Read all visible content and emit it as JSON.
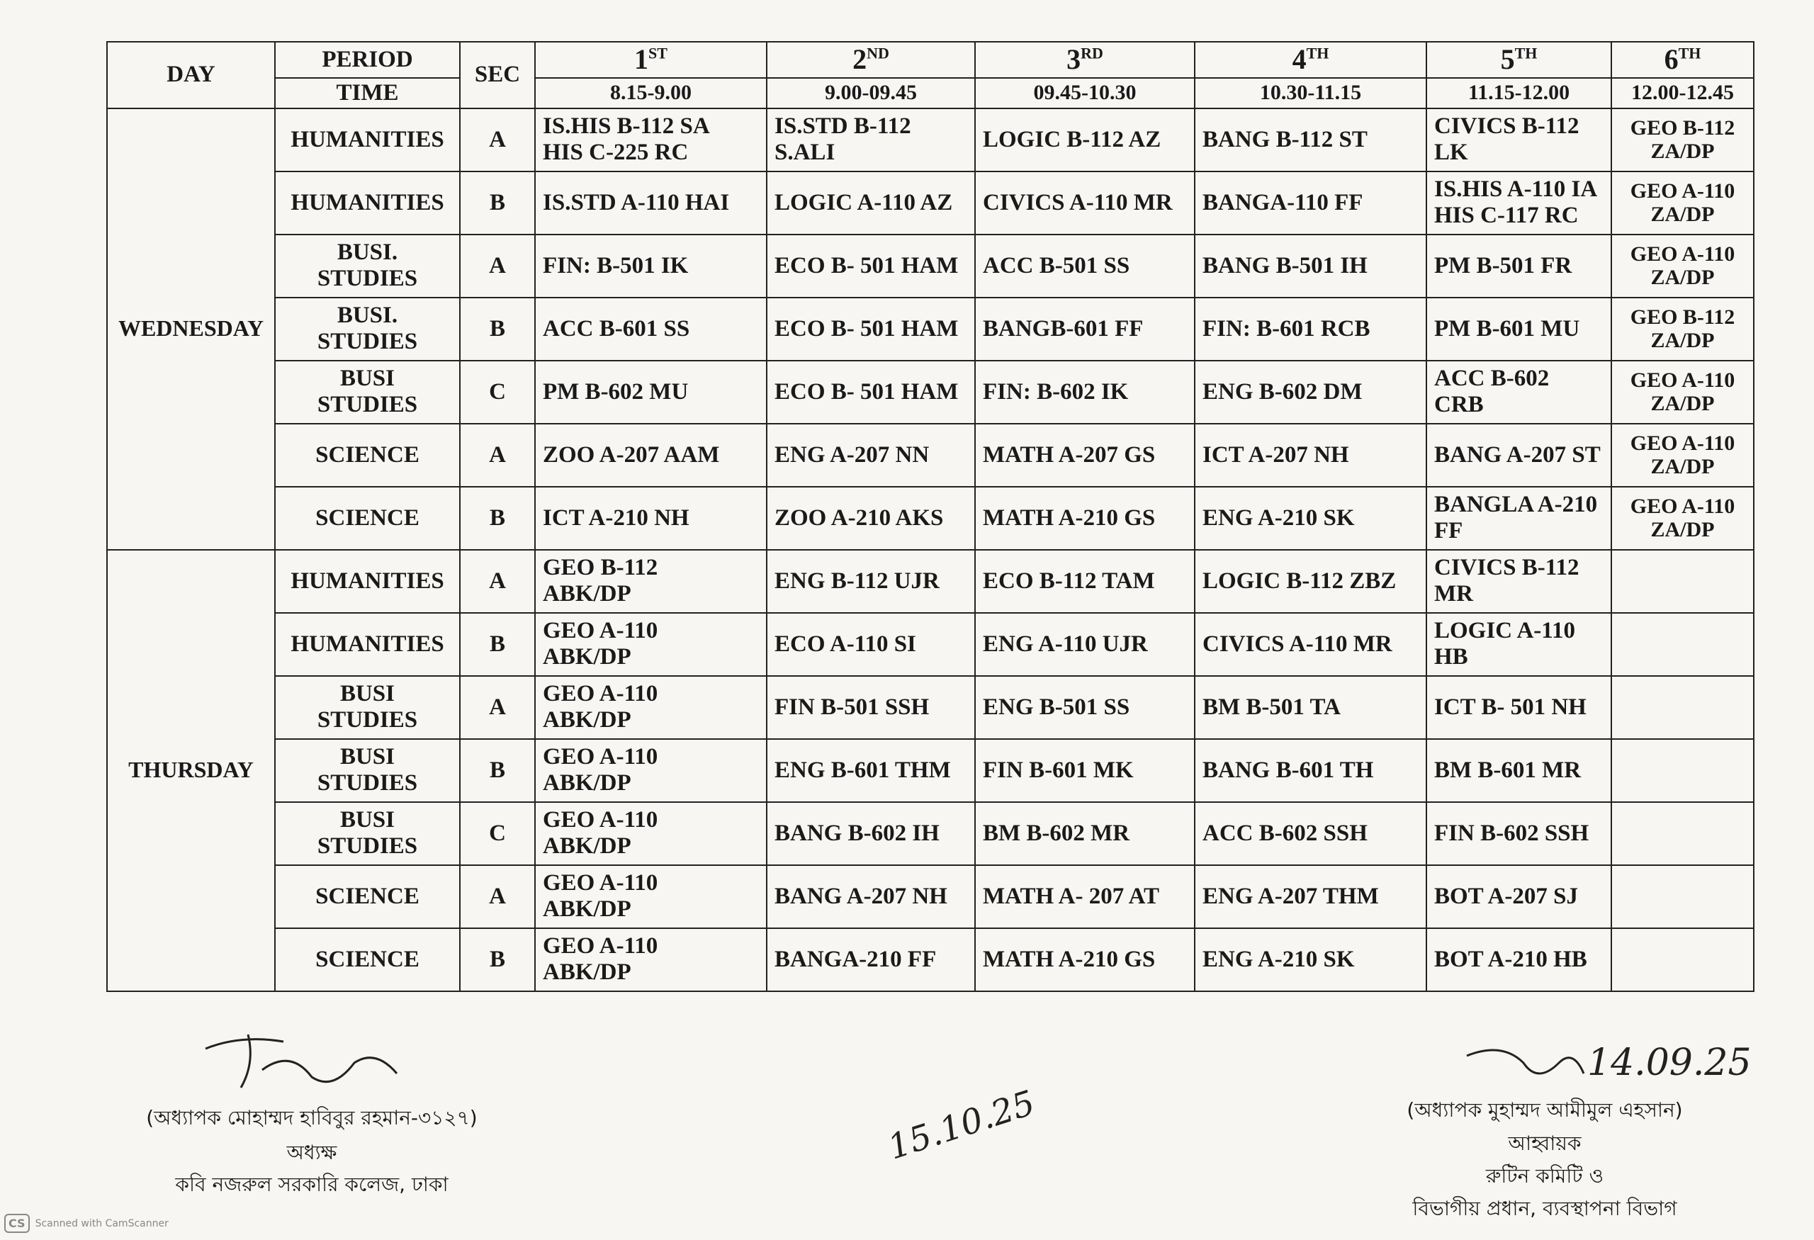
{
  "header": {
    "day": "DAY",
    "period": "PERIOD",
    "time": "TIME",
    "section": "SEC",
    "periods": [
      {
        "number": "1",
        "suffix": "ST",
        "time": "8.15-9.00"
      },
      {
        "number": "2",
        "suffix": "ND",
        "time": "9.00-09.45"
      },
      {
        "number": "3",
        "suffix": "RD",
        "time": "09.45-10.30"
      },
      {
        "number": "4",
        "suffix": "TH",
        "time": "10.30-11.15"
      },
      {
        "number": "5",
        "suffix": "TH",
        "time": "11.15-12.00"
      },
      {
        "number": "6",
        "suffix": "TH",
        "time": "12.00-12.45"
      }
    ]
  },
  "days": [
    {
      "name": "WEDNESDAY",
      "rows": [
        {
          "group": "HUMANITIES",
          "section": "A",
          "cells": [
            "IS.HIS B-112 SA\nHIS C-225 RC",
            "IS.STD B-112\nS.ALI",
            "LOGIC B-112 AZ",
            "BANG B-112 ST",
            "CIVICS B-112\nLK",
            "GEO B-112\nZA/DP"
          ]
        },
        {
          "group": "HUMANITIES",
          "section": "B",
          "cells": [
            "IS.STD A-110 HAI",
            "LOGIC A-110 AZ",
            "CIVICS A-110 MR",
            "BANGA-110 FF",
            "IS.HIS A-110 IA\nHIS C-117 RC",
            "GEO A-110\nZA/DP"
          ]
        },
        {
          "group": "BUSI.\nSTUDIES",
          "section": "A",
          "cells": [
            "FIN: B-501 IK",
            "ECO B- 501 HAM",
            "ACC B-501 SS",
            "BANG B-501 IH",
            "PM B-501 FR",
            "GEO A-110\nZA/DP"
          ]
        },
        {
          "group": "BUSI.\nSTUDIES",
          "section": "B",
          "cells": [
            "ACC B-601 SS",
            "ECO B- 501 HAM",
            "BANGB-601 FF",
            "FIN: B-601 RCB",
            "PM B-601 MU",
            "GEO B-112\nZA/DP"
          ]
        },
        {
          "group": "BUSI\nSTUDIES",
          "section": "C",
          "cells": [
            "PM B-602 MU",
            "ECO B- 501 HAM",
            "FIN: B-602 IK",
            "ENG B-602 DM",
            "ACC B-602\nCRB",
            "GEO A-110\nZA/DP"
          ]
        },
        {
          "group": "SCIENCE",
          "section": "A",
          "cells": [
            "ZOO A-207 AAM",
            "ENG A-207 NN",
            "MATH A-207 GS",
            "ICT A-207 NH",
            "BANG A-207 ST",
            "GEO A-110\nZA/DP"
          ]
        },
        {
          "group": "SCIENCE",
          "section": "B",
          "cells": [
            "ICT A-210 NH",
            "ZOO A-210 AKS",
            "MATH A-210 GS",
            "ENG A-210 SK",
            "BANGLA A-210\nFF",
            "GEO A-110\nZA/DP"
          ]
        }
      ]
    },
    {
      "name": "THURSDAY",
      "rows": [
        {
          "group": "HUMANITIES",
          "section": "A",
          "cells": [
            "GEO B-112\nABK/DP",
            "ENG B-112 UJR",
            "ECO B-112 TAM",
            "LOGIC B-112 ZBZ",
            "CIVICS B-112\nMR",
            null
          ]
        },
        {
          "group": "HUMANITIES",
          "section": "B",
          "cells": [
            "GEO A-110\nABK/DP",
            "ECO A-110 SI",
            "ENG A-110 UJR",
            "CIVICS A-110 MR",
            "LOGIC A-110\nHB",
            null
          ]
        },
        {
          "group": "BUSI\nSTUDIES",
          "section": "A",
          "cells": [
            "GEO A-110\nABK/DP",
            "FIN B-501 SSH",
            "ENG B-501 SS",
            "BM B-501 TA",
            "ICT B- 501 NH",
            null
          ]
        },
        {
          "group": "BUSI\nSTUDIES",
          "section": "B",
          "cells": [
            "GEO A-110\nABK/DP",
            "ENG B-601 THM",
            "FIN B-601 MK",
            "BANG B-601 TH",
            "BM B-601 MR",
            null
          ]
        },
        {
          "group": "BUSI\nSTUDIES",
          "section": "C",
          "cells": [
            "GEO A-110\nABK/DP",
            "BANG B-602 IH",
            "BM B-602 MR",
            "ACC B-602 SSH",
            "FIN B-602 SSH",
            null
          ]
        },
        {
          "group": "SCIENCE",
          "section": "A",
          "cells": [
            "GEO A-110\nABK/DP",
            "BANG A-207 NH",
            "MATH A- 207 AT",
            "ENG A-207 THM",
            "BOT A-207 SJ",
            null
          ]
        },
        {
          "group": "SCIENCE",
          "section": "B",
          "cells": [
            "GEO A-110\nABK/DP",
            "BANGA-210 FF",
            "MATH A-210 GS",
            "ENG A-210 SK",
            "BOT A-210 HB",
            null
          ]
        }
      ]
    }
  ],
  "footer": {
    "left": {
      "name": "(অধ্যাপক মোহাম্মদ হাবিবুর রহমান-৩১২৭)",
      "designation": "অধ্যক্ষ",
      "institution": "কবি নজরুল সরকারি কলেজ, ঢাকা"
    },
    "middle_date": "15.10.25",
    "right": {
      "date": "14.09.25",
      "name": "(অধ্যাপক মুহাম্মদ আমীমুল এহসান)",
      "role": "আহ্বায়ক",
      "committee": "রুটিন কমিটি ও",
      "department": "বিভাগীয় প্রধান, ব্যবস্থাপনা বিভাগ"
    },
    "watermark": "Scanned with CamScanner"
  }
}
